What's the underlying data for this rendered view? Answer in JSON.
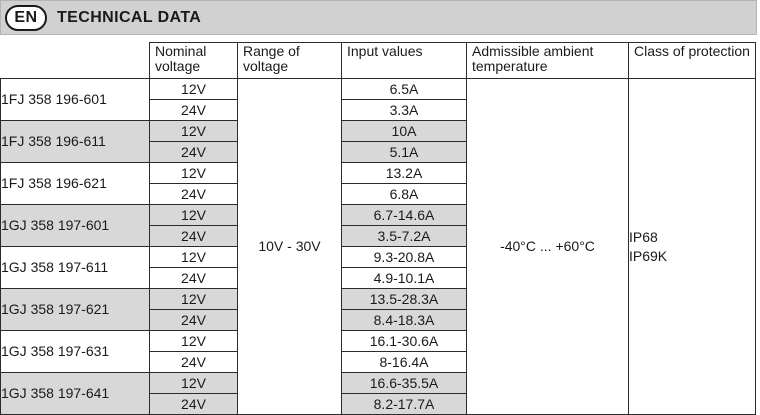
{
  "header": {
    "lang": "EN",
    "title": "TECHNICAL DATA"
  },
  "columns": {
    "nominal_voltage": "Nominal voltage",
    "range_of_voltage": "Range of voltage",
    "input_values": "Input values",
    "ambient_temperature": "Admissible ambient temperature",
    "class_of_protection": "Class of protection"
  },
  "range_value": "10V - 30V",
  "temperature_value": "-40°C ... +60°C",
  "protection_values": [
    "IP68",
    "IP69K"
  ],
  "rows": [
    {
      "model": "1FJ 358 196-601",
      "shaded": false,
      "voltages": [
        "12V",
        "24V"
      ],
      "inputs": [
        "6.5A",
        "3.3A"
      ]
    },
    {
      "model": "1FJ 358 196-611",
      "shaded": true,
      "voltages": [
        "12V",
        "24V"
      ],
      "inputs": [
        "10A",
        "5.1A"
      ]
    },
    {
      "model": "1FJ 358 196-621",
      "shaded": false,
      "voltages": [
        "12V",
        "24V"
      ],
      "inputs": [
        "13.2A",
        "6.8A"
      ]
    },
    {
      "model": "1GJ 358 197-601",
      "shaded": true,
      "voltages": [
        "12V",
        "24V"
      ],
      "inputs": [
        "6.7-14.6A",
        "3.5-7.2A"
      ]
    },
    {
      "model": "1GJ 358 197-611",
      "shaded": false,
      "voltages": [
        "12V",
        "24V"
      ],
      "inputs": [
        "9.3-20.8A",
        "4.9-10.1A"
      ]
    },
    {
      "model": "1GJ 358 197-621",
      "shaded": true,
      "voltages": [
        "12V",
        "24V"
      ],
      "inputs": [
        "13.5-28.3A",
        "8.4-18.3A"
      ]
    },
    {
      "model": "1GJ 358 197-631",
      "shaded": false,
      "voltages": [
        "12V",
        "24V"
      ],
      "inputs": [
        "16.1-30.6A",
        "8-16.4A"
      ]
    },
    {
      "model": "1GJ 358 197-641",
      "shaded": true,
      "voltages": [
        "12V",
        "24V"
      ],
      "inputs": [
        "16.6-35.5A",
        "8.2-17.7A"
      ]
    }
  ]
}
